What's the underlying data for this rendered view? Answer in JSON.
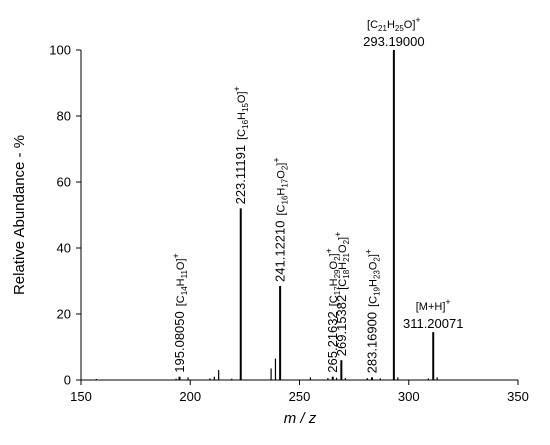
{
  "chart_data": {
    "type": "bar",
    "xlabel": "m / z",
    "ylabel": "Relative Abundance - %",
    "xlim": [
      150,
      350
    ],
    "ylim": [
      0,
      100
    ],
    "xticks": [
      150,
      200,
      250,
      300,
      350
    ],
    "yticks": [
      0,
      20,
      40,
      60,
      80,
      100
    ],
    "grid": false,
    "peaks": [
      {
        "mz": 195.0805,
        "label": "195.08050",
        "abundance": 1.0,
        "formula_parts": [
          [
            "[C",
            ""
          ],
          [
            "14",
            "sub"
          ],
          [
            "H",
            ""
          ],
          [
            "11",
            "sub"
          ],
          [
            "O]",
            ""
          ],
          [
            "+",
            "sup"
          ]
        ]
      },
      {
        "mz": 223.11191,
        "label": "223.11191",
        "abundance": 52.0,
        "formula_parts": [
          [
            "[C",
            ""
          ],
          [
            "16",
            "sub"
          ],
          [
            "H",
            ""
          ],
          [
            "15",
            "sub"
          ],
          [
            "O]",
            ""
          ],
          [
            "+",
            "sup"
          ]
        ]
      },
      {
        "mz": 241.1221,
        "label": "241.12210",
        "abundance": 28.5,
        "formula_parts": [
          [
            "[C",
            ""
          ],
          [
            "16",
            "sub"
          ],
          [
            "H",
            ""
          ],
          [
            "17",
            "sub"
          ],
          [
            "O",
            ""
          ],
          [
            "2",
            "sub"
          ],
          [
            "]",
            ""
          ],
          [
            "+",
            "sup"
          ]
        ]
      },
      {
        "mz": 265.21632,
        "label": "265.21632",
        "abundance": 1.0,
        "formula_parts": [
          [
            "[C",
            ""
          ],
          [
            "17",
            "sub"
          ],
          [
            "H",
            ""
          ],
          [
            "29",
            "sub"
          ],
          [
            "O",
            ""
          ],
          [
            "2",
            "sub"
          ],
          [
            "]",
            ""
          ],
          [
            "+",
            "sup"
          ]
        ]
      },
      {
        "mz": 269.15382,
        "label": "269.15382",
        "abundance": 6.0,
        "formula_parts": [
          [
            "[C",
            ""
          ],
          [
            "18",
            "sub"
          ],
          [
            "H",
            ""
          ],
          [
            "21",
            "sub"
          ],
          [
            "O",
            ""
          ],
          [
            "2",
            "sub"
          ],
          [
            "]",
            ""
          ],
          [
            "+",
            "sup"
          ]
        ]
      },
      {
        "mz": 283.169,
        "label": "283.16900",
        "abundance": 0.8,
        "formula_parts": [
          [
            "[C",
            ""
          ],
          [
            "19",
            "sub"
          ],
          [
            "H",
            ""
          ],
          [
            "23",
            "sub"
          ],
          [
            "O",
            ""
          ],
          [
            "2",
            "sub"
          ],
          [
            "]",
            ""
          ],
          [
            "+",
            "sup"
          ]
        ]
      },
      {
        "mz": 293.19,
        "label": "293.19000",
        "abundance": 100.0,
        "formula_parts": [
          [
            "[C",
            ""
          ],
          [
            "21",
            "sub"
          ],
          [
            "H",
            ""
          ],
          [
            "25",
            "sub"
          ],
          [
            "O]",
            ""
          ],
          [
            "+",
            "sup"
          ]
        ]
      },
      {
        "mz": 311.20071,
        "label": "311.20071",
        "abundance": 14.5,
        "formula_parts": [
          [
            "[M+H]",
            ""
          ],
          [
            "+",
            "sup"
          ]
        ]
      }
    ],
    "minor_peaks": [
      {
        "mz": 157.0,
        "abundance": 0.3
      },
      {
        "mz": 193.5,
        "abundance": 0.4
      },
      {
        "mz": 199.0,
        "abundance": 0.8
      },
      {
        "mz": 209.0,
        "abundance": 0.5
      },
      {
        "mz": 211.0,
        "abundance": 1.0
      },
      {
        "mz": 213.0,
        "abundance": 3.0
      },
      {
        "mz": 219.0,
        "abundance": 0.4
      },
      {
        "mz": 237.0,
        "abundance": 3.5
      },
      {
        "mz": 239.0,
        "abundance": 6.5
      },
      {
        "mz": 255.0,
        "abundance": 0.8
      },
      {
        "mz": 263.0,
        "abundance": 0.6
      },
      {
        "mz": 267.0,
        "abundance": 0.7
      },
      {
        "mz": 271.0,
        "abundance": 0.6
      },
      {
        "mz": 281.0,
        "abundance": 0.6
      },
      {
        "mz": 287.0,
        "abundance": 0.5
      },
      {
        "mz": 295.0,
        "abundance": 0.8
      },
      {
        "mz": 309.0,
        "abundance": 0.5
      },
      {
        "mz": 313.0,
        "abundance": 0.8
      }
    ]
  }
}
